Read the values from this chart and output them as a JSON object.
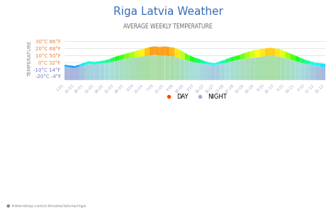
{
  "title": "Riga Latvia Weather",
  "subtitle": "AVERAGE WEEKLY TEMPERATURE",
  "ylabel": "TEMPERATURE",
  "watermark": "hikersbay.com/climate/latvia/riga",
  "yticks_c": [
    -20,
    -10,
    0,
    10,
    20,
    30
  ],
  "yticks_labels": [
    "-20°C -4°F",
    "-10°C 14°F",
    "0°C 32°F",
    "10°C 50°F",
    "20°C 68°F",
    "30°C 86°F"
  ],
  "xtick_labels": [
    "1-01",
    "15-01",
    "29-01",
    "12-02",
    "26-02",
    "12-03",
    "26-03",
    "9-04",
    "23-04",
    "7-05",
    "21-05",
    "4-06",
    "18-06",
    "2-07",
    "16-07",
    "30-07",
    "13-08",
    "27-08",
    "10-09",
    "24-09",
    "8-10",
    "22-10",
    "5-11",
    "19-11",
    "3-12",
    "17-12",
    "31-12"
  ],
  "day_temps": [
    -3,
    -4,
    -5,
    -3,
    0,
    2,
    1,
    2,
    3,
    5,
    8,
    10,
    12,
    14,
    16,
    18,
    20,
    22,
    23,
    22,
    23,
    22,
    21,
    18,
    14,
    10,
    7,
    5,
    2,
    0,
    -1,
    2,
    4,
    7,
    9,
    11,
    14,
    16,
    18,
    19,
    20,
    21,
    20,
    19,
    16,
    13,
    10,
    7,
    4,
    2,
    0,
    -1,
    -2
  ],
  "night_temps": [
    -6,
    -7,
    -8,
    -6,
    -4,
    -2,
    -3,
    -2,
    -1,
    0,
    2,
    3,
    5,
    6,
    7,
    8,
    9,
    10,
    11,
    10,
    10,
    9,
    8,
    6,
    4,
    2,
    0,
    -1,
    -2,
    -3,
    -4,
    -2,
    -1,
    1,
    3,
    4,
    5,
    6,
    7,
    8,
    9,
    10,
    9,
    8,
    6,
    4,
    2,
    0,
    -2,
    -3,
    -5,
    -6,
    -7
  ],
  "bg_color": "#ffffff",
  "title_color": "#3a6eb5",
  "subtitle_color": "#666666",
  "ytick_color": "#e87832",
  "ytick_neg_color": "#7070c8",
  "grid_color": "#dddddd",
  "watermark_color": "#888888"
}
